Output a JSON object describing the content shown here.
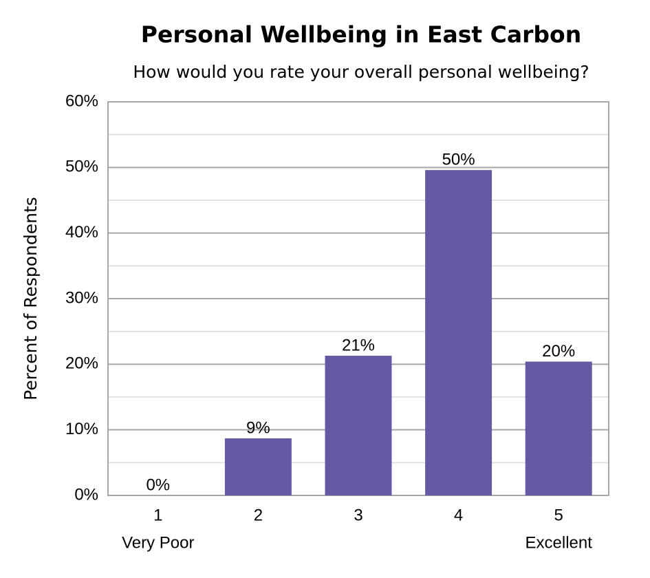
{
  "chart_data": {
    "type": "bar",
    "title": "Personal Wellbeing in East Carbon",
    "subtitle": "How would you rate your overall personal wellbeing?",
    "y_label": "Percent of Respondents",
    "categories": [
      "1",
      "2",
      "3",
      "4",
      "5"
    ],
    "category_sublabels": [
      "Very Poor",
      null,
      null,
      null,
      "Excellent"
    ],
    "values": [
      0,
      8.7,
      21.3,
      49.6,
      20.4
    ],
    "value_labels": [
      "0%",
      "9%",
      "21%",
      "50%",
      "20%"
    ],
    "color": "#635aa3",
    "ylim": [
      0,
      60
    ],
    "yticks": [
      {
        "value": 0,
        "label": "0%"
      },
      {
        "value": 10,
        "label": "10%"
      },
      {
        "value": 20,
        "label": "20%"
      },
      {
        "value": 30,
        "label": "30%"
      },
      {
        "value": 40,
        "label": "40%"
      },
      {
        "value": 50,
        "label": "50%"
      },
      {
        "value": 60,
        "label": "60%"
      }
    ],
    "minor_yticks": [
      5,
      15,
      25,
      35,
      45,
      55
    ],
    "grid": true
  }
}
